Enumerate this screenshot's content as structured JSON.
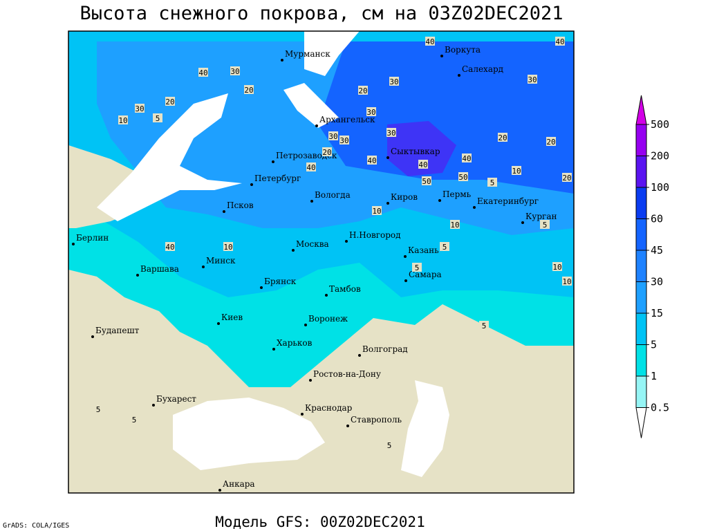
{
  "header": {
    "title": "Высота снежного покрова, см на 03Z02DEC2021"
  },
  "footer": {
    "model": "Модель GFS: 00Z02DEC2021",
    "credit": "GrADS: COLA/IGES"
  },
  "legend": {
    "levels": [
      0.5,
      1,
      5,
      15,
      30,
      45,
      60,
      100,
      200,
      500
    ],
    "colors": [
      "#ffffff",
      "#96f5f5",
      "#00e1e6",
      "#00c3f5",
      "#1ea0ff",
      "#1e82ff",
      "#1464ff",
      "#0a3cf0",
      "#5a14f0",
      "#9600f0",
      "#d200e6"
    ]
  },
  "cities": [
    "Мурманск",
    "Воркута",
    "Салехард",
    "Архангельск",
    "Петрозаводск",
    "Сыктывкар",
    "Петербург",
    "Вологда",
    "Киров",
    "Пермь",
    "Екатеринбург",
    "Курган",
    "Псков",
    "Берлин",
    "Н.Новгород",
    "Москва",
    "Казань",
    "Варшава",
    "Минск",
    "Брянск",
    "Самара",
    "Тамбов",
    "Киев",
    "Воронеж",
    "Будапешт",
    "Харьков",
    "Волгоград",
    "Ростов-на-Дону",
    "Бухарест",
    "Краснодар",
    "Ставрополь",
    "Анкара"
  ],
  "contour_labels": [
    "40",
    "30",
    "20",
    "20",
    "30",
    "10",
    "5",
    "40",
    "40",
    "30",
    "20",
    "30",
    "30",
    "30",
    "30",
    "30",
    "20",
    "40",
    "40",
    "40",
    "40",
    "20",
    "20",
    "10",
    "5",
    "20",
    "50",
    "50",
    "10",
    "10",
    "5",
    "40",
    "10",
    "5",
    "5",
    "10",
    "10",
    "5",
    "5",
    "5",
    "5"
  ]
}
